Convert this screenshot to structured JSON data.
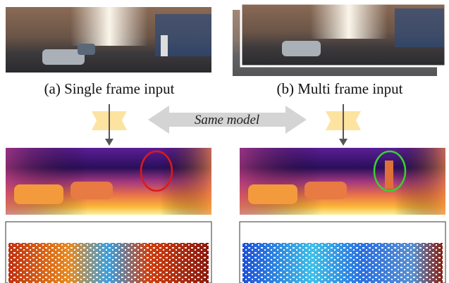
{
  "panels": [
    {
      "caption": "(a) Single frame input"
    },
    {
      "caption": "(b) Multi frame input"
    }
  ],
  "model_label": "Same model"
}
